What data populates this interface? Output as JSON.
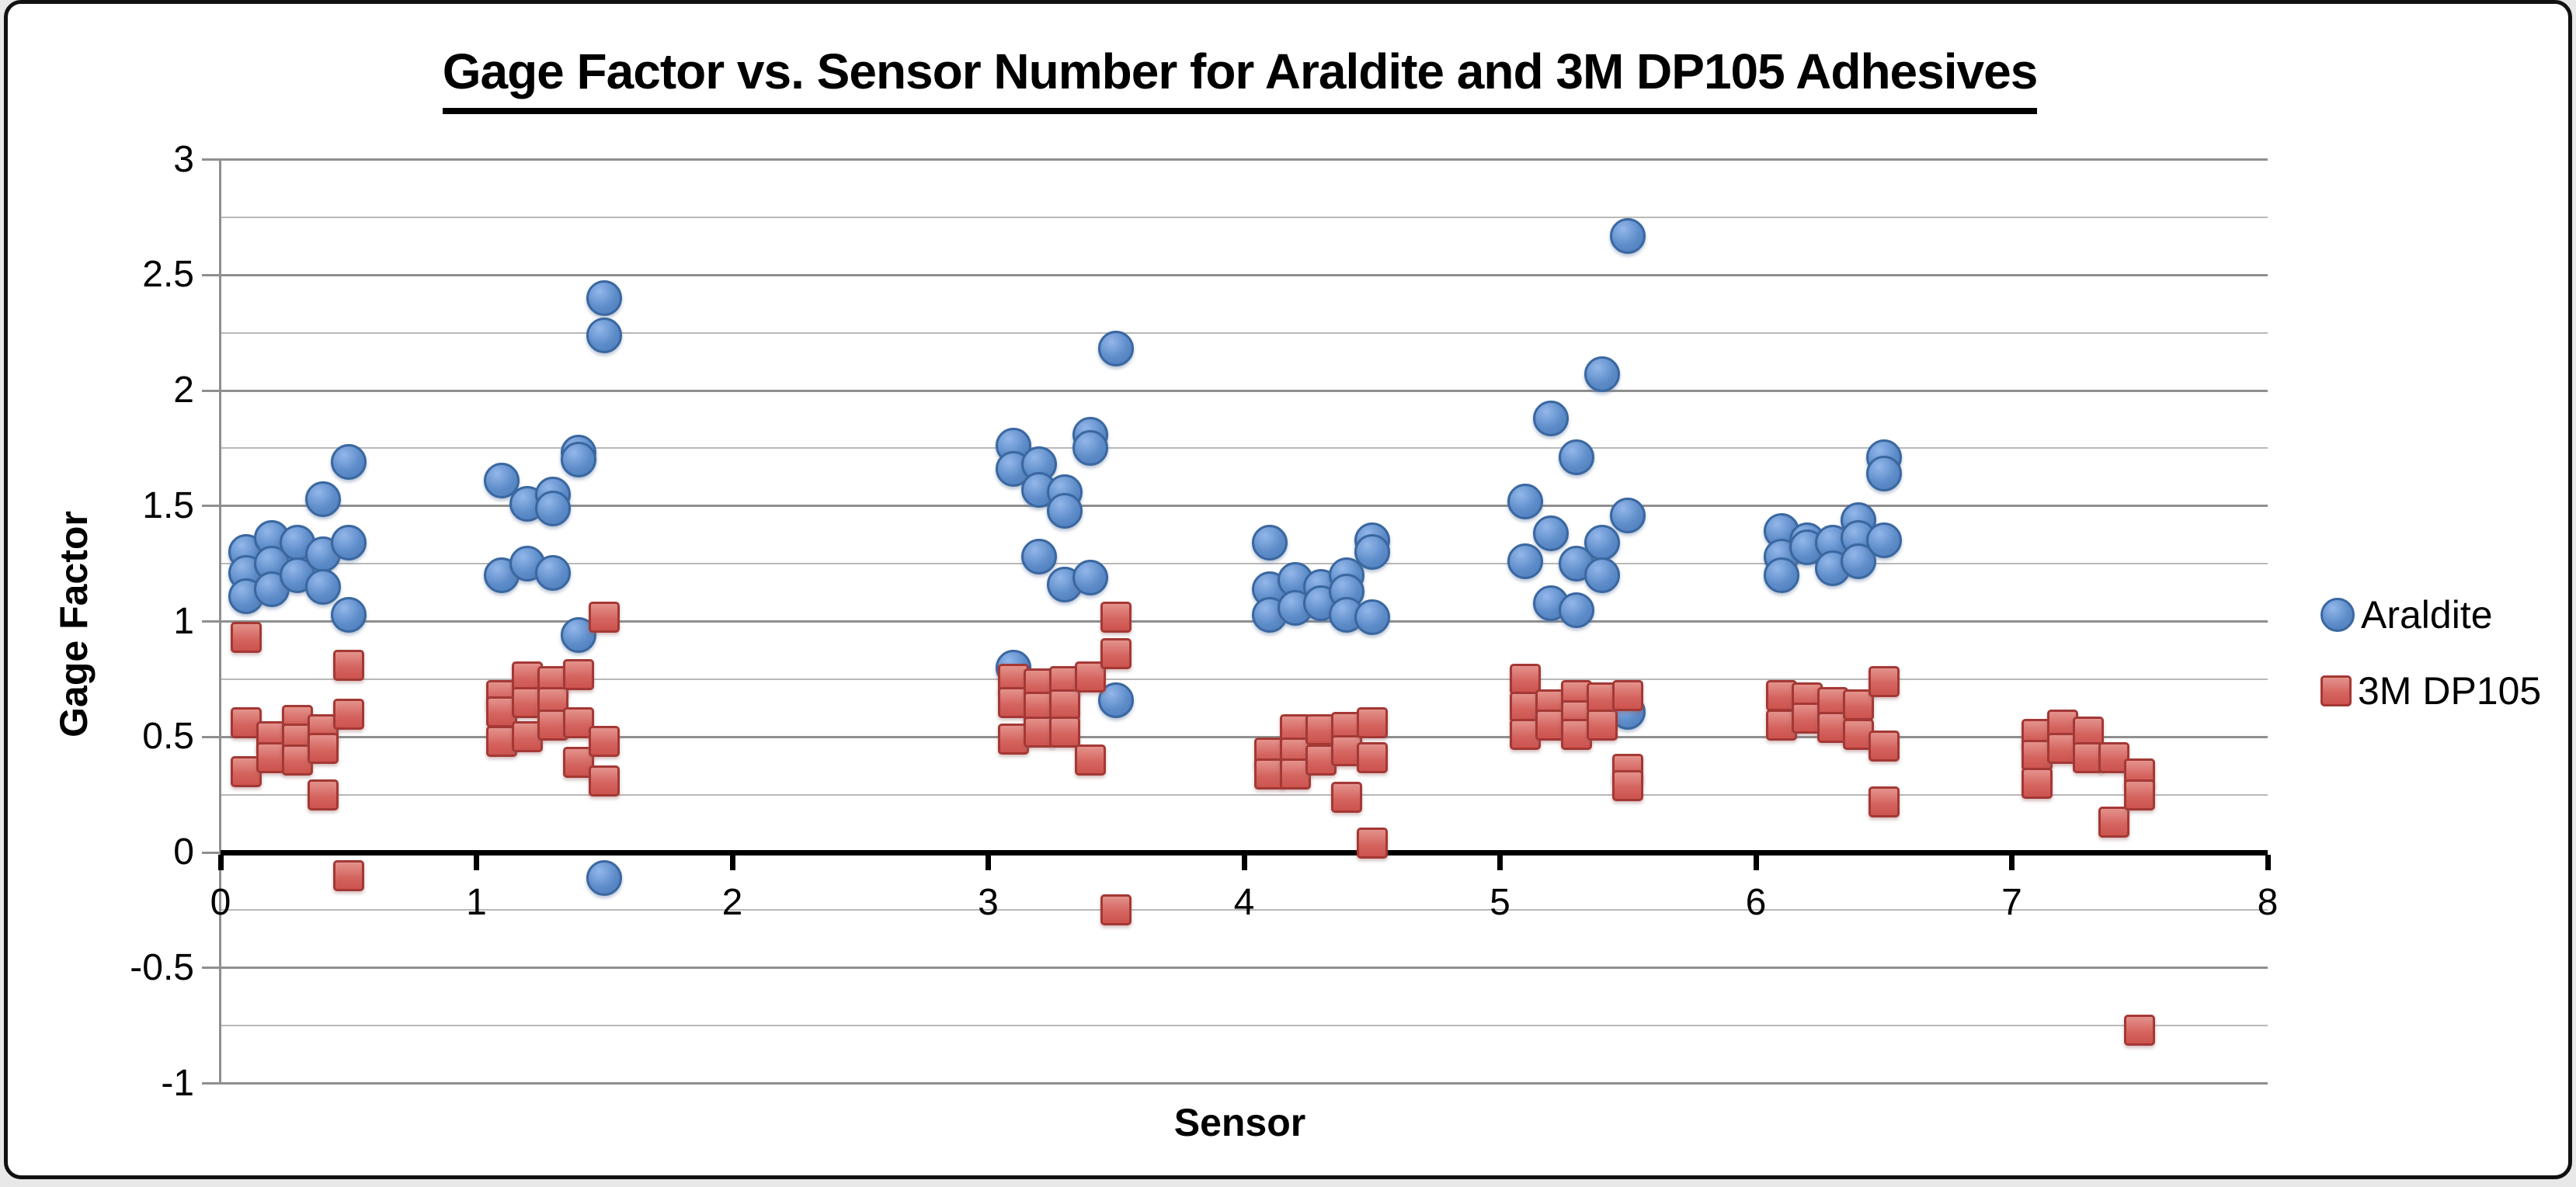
{
  "chart_data": {
    "type": "scatter",
    "title": "Gage Factor vs. Sensor Number for Araldite and 3M DP105 Adhesives",
    "xlabel": "Sensor",
    "ylabel": "Gage Factor",
    "xlim": [
      0,
      8
    ],
    "ylim": [
      -1,
      3
    ],
    "gridline_step": 0.25,
    "grid": true,
    "legend_position": "right",
    "x_ticks": [
      {
        "value": 0,
        "label": "0"
      },
      {
        "value": 1,
        "label": "1"
      },
      {
        "value": 2,
        "label": "2"
      },
      {
        "value": 3,
        "label": "3"
      },
      {
        "value": 4,
        "label": "4"
      },
      {
        "value": 5,
        "label": "5"
      },
      {
        "value": 6,
        "label": "6"
      },
      {
        "value": 7,
        "label": "7"
      },
      {
        "value": 8,
        "label": "8"
      }
    ],
    "y_ticks": [
      {
        "value": 3,
        "label": "3"
      },
      {
        "value": 2.5,
        "label": "2.5"
      },
      {
        "value": 2,
        "label": "2"
      },
      {
        "value": 1.5,
        "label": "1.5"
      },
      {
        "value": 1,
        "label": "1"
      },
      {
        "value": 0.5,
        "label": "0.5"
      },
      {
        "value": 0,
        "label": "0"
      },
      {
        "value": -0.5,
        "label": "-0.5"
      },
      {
        "value": -1,
        "label": "-1"
      }
    ],
    "colors": {
      "araldite_fill": "#4F81BD",
      "araldite_border": "#3A67A0",
      "dp105_fill": "#C0504D",
      "dp105_border": "#A43835",
      "gridline": "#A6A6A6",
      "axis": "#000000"
    },
    "series": [
      {
        "name": "Araldite",
        "marker": "circle",
        "points": [
          [
            0.1,
            1.3
          ],
          [
            0.1,
            1.21
          ],
          [
            0.1,
            1.11
          ],
          [
            0.2,
            1.36
          ],
          [
            0.2,
            1.25
          ],
          [
            0.2,
            1.14
          ],
          [
            0.3,
            1.34
          ],
          [
            0.3,
            1.2
          ],
          [
            0.4,
            1.53
          ],
          [
            0.4,
            1.29
          ],
          [
            0.4,
            1.15
          ],
          [
            0.5,
            1.69
          ],
          [
            0.5,
            1.34
          ],
          [
            0.5,
            1.03
          ],
          [
            1.1,
            1.61
          ],
          [
            1.1,
            1.2
          ],
          [
            1.2,
            1.51
          ],
          [
            1.2,
            1.25
          ],
          [
            1.3,
            1.55
          ],
          [
            1.3,
            1.49
          ],
          [
            1.3,
            1.21
          ],
          [
            1.4,
            1.73
          ],
          [
            1.4,
            1.7
          ],
          [
            1.4,
            0.94
          ],
          [
            1.5,
            2.4
          ],
          [
            1.5,
            2.24
          ],
          [
            1.5,
            -0.11
          ],
          [
            3.1,
            1.76
          ],
          [
            3.1,
            1.66
          ],
          [
            3.1,
            0.8
          ],
          [
            3.2,
            1.68
          ],
          [
            3.2,
            1.57
          ],
          [
            3.2,
            1.28
          ],
          [
            3.3,
            1.56
          ],
          [
            3.3,
            1.48
          ],
          [
            3.3,
            1.16
          ],
          [
            3.4,
            1.81
          ],
          [
            3.4,
            1.75
          ],
          [
            3.4,
            1.19
          ],
          [
            3.5,
            2.18
          ],
          [
            3.5,
            0.66
          ],
          [
            4.1,
            1.34
          ],
          [
            4.1,
            1.14
          ],
          [
            4.1,
            1.03
          ],
          [
            4.2,
            1.18
          ],
          [
            4.2,
            1.06
          ],
          [
            4.3,
            1.15
          ],
          [
            4.3,
            1.08
          ],
          [
            4.4,
            1.2
          ],
          [
            4.4,
            1.13
          ],
          [
            4.4,
            1.03
          ],
          [
            4.5,
            1.35
          ],
          [
            4.5,
            1.3
          ],
          [
            4.5,
            1.02
          ],
          [
            5.1,
            1.52
          ],
          [
            5.1,
            1.26
          ],
          [
            5.2,
            1.88
          ],
          [
            5.2,
            1.38
          ],
          [
            5.2,
            1.08
          ],
          [
            5.3,
            1.71
          ],
          [
            5.3,
            1.25
          ],
          [
            5.3,
            1.05
          ],
          [
            5.4,
            2.07
          ],
          [
            5.4,
            1.34
          ],
          [
            5.4,
            1.2
          ],
          [
            5.5,
            2.67
          ],
          [
            5.5,
            1.46
          ],
          [
            5.5,
            0.61
          ],
          [
            6.1,
            1.39
          ],
          [
            6.1,
            1.28
          ],
          [
            6.1,
            1.2
          ],
          [
            6.2,
            1.35
          ],
          [
            6.2,
            1.32
          ],
          [
            6.3,
            1.34
          ],
          [
            6.3,
            1.23
          ],
          [
            6.4,
            1.44
          ],
          [
            6.4,
            1.36
          ],
          [
            6.4,
            1.26
          ],
          [
            6.5,
            1.71
          ],
          [
            6.5,
            1.64
          ],
          [
            6.5,
            1.35
          ]
        ]
      },
      {
        "name": "3M DP105",
        "marker": "square",
        "points": [
          [
            0.1,
            0.93
          ],
          [
            0.1,
            0.56
          ],
          [
            0.1,
            0.35
          ],
          [
            0.2,
            0.5
          ],
          [
            0.2,
            0.41
          ],
          [
            0.3,
            0.57
          ],
          [
            0.3,
            0.49
          ],
          [
            0.3,
            0.4
          ],
          [
            0.4,
            0.53
          ],
          [
            0.4,
            0.45
          ],
          [
            0.4,
            0.25
          ],
          [
            0.5,
            0.81
          ],
          [
            0.5,
            0.6
          ],
          [
            0.5,
            -0.1
          ],
          [
            1.1,
            0.68
          ],
          [
            1.1,
            0.61
          ],
          [
            1.1,
            0.48
          ],
          [
            1.2,
            0.76
          ],
          [
            1.2,
            0.65
          ],
          [
            1.2,
            0.5
          ],
          [
            1.3,
            0.74
          ],
          [
            1.3,
            0.65
          ],
          [
            1.3,
            0.55
          ],
          [
            1.4,
            0.77
          ],
          [
            1.4,
            0.56
          ],
          [
            1.4,
            0.39
          ],
          [
            1.5,
            1.02
          ],
          [
            1.5,
            0.48
          ],
          [
            1.5,
            0.31
          ],
          [
            3.1,
            0.75
          ],
          [
            3.1,
            0.65
          ],
          [
            3.1,
            0.49
          ],
          [
            3.2,
            0.73
          ],
          [
            3.2,
            0.63
          ],
          [
            3.2,
            0.52
          ],
          [
            3.3,
            0.74
          ],
          [
            3.3,
            0.64
          ],
          [
            3.3,
            0.52
          ],
          [
            3.4,
            0.76
          ],
          [
            3.4,
            0.4
          ],
          [
            3.5,
            1.02
          ],
          [
            3.5,
            0.86
          ],
          [
            3.5,
            -0.25
          ],
          [
            4.1,
            0.43
          ],
          [
            4.1,
            0.34
          ],
          [
            4.2,
            0.53
          ],
          [
            4.2,
            0.43
          ],
          [
            4.2,
            0.34
          ],
          [
            4.3,
            0.53
          ],
          [
            4.3,
            0.4
          ],
          [
            4.4,
            0.54
          ],
          [
            4.4,
            0.44
          ],
          [
            4.4,
            0.24
          ],
          [
            4.5,
            0.56
          ],
          [
            4.5,
            0.41
          ],
          [
            4.5,
            0.04
          ],
          [
            5.1,
            0.75
          ],
          [
            5.1,
            0.63
          ],
          [
            5.1,
            0.51
          ],
          [
            5.2,
            0.64
          ],
          [
            5.2,
            0.55
          ],
          [
            5.3,
            0.68
          ],
          [
            5.3,
            0.59
          ],
          [
            5.3,
            0.51
          ],
          [
            5.4,
            0.67
          ],
          [
            5.4,
            0.55
          ],
          [
            5.5,
            0.68
          ],
          [
            5.5,
            0.36
          ],
          [
            5.5,
            0.29
          ],
          [
            6.1,
            0.68
          ],
          [
            6.1,
            0.55
          ],
          [
            6.2,
            0.67
          ],
          [
            6.2,
            0.58
          ],
          [
            6.3,
            0.65
          ],
          [
            6.3,
            0.54
          ],
          [
            6.4,
            0.64
          ],
          [
            6.4,
            0.51
          ],
          [
            6.5,
            0.74
          ],
          [
            6.5,
            0.46
          ],
          [
            6.5,
            0.22
          ],
          [
            7.1,
            0.51
          ],
          [
            7.1,
            0.42
          ],
          [
            7.1,
            0.3
          ],
          [
            7.2,
            0.55
          ],
          [
            7.2,
            0.45
          ],
          [
            7.3,
            0.52
          ],
          [
            7.3,
            0.41
          ],
          [
            7.4,
            0.41
          ],
          [
            7.4,
            0.13
          ],
          [
            7.5,
            0.34
          ],
          [
            7.5,
            0.25
          ],
          [
            7.5,
            -0.77
          ]
        ]
      }
    ]
  }
}
